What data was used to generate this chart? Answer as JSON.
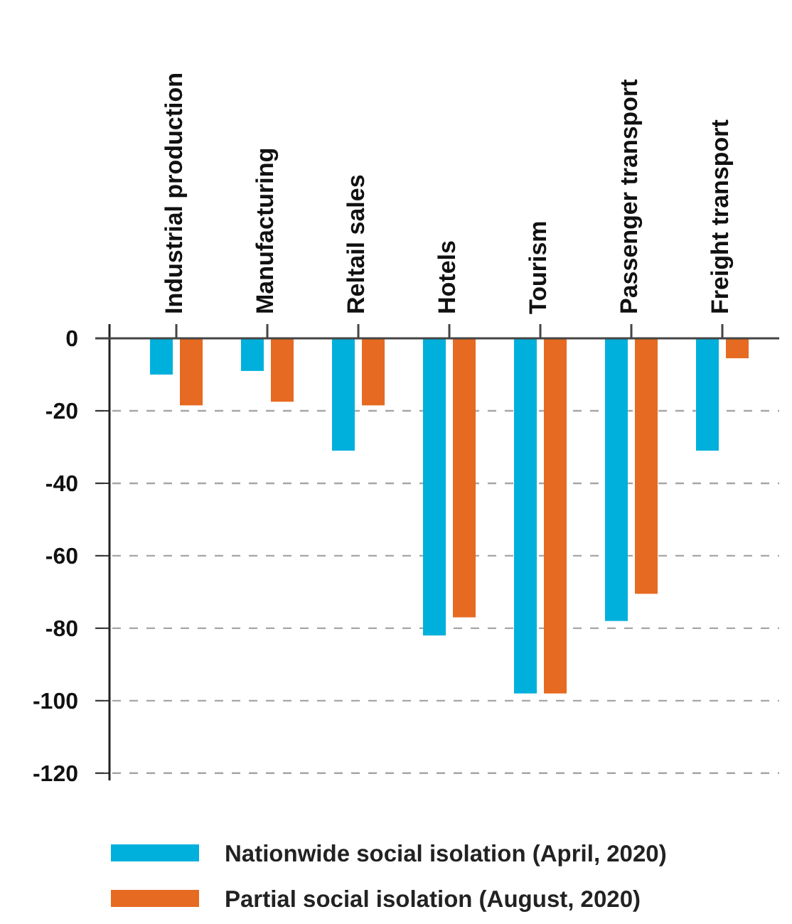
{
  "chart_data": {
    "type": "bar",
    "categories": [
      "Industrial production",
      "Manufacturing",
      "Reltail sales",
      "Hotels",
      "Tourism",
      "Passenger transport",
      "Freight transport"
    ],
    "series": [
      {
        "name": "Nationwide social isolation (April, 2020)",
        "color": "#00b0dc",
        "values": [
          -10,
          -9,
          -31,
          -82,
          -98,
          -78,
          -31
        ]
      },
      {
        "name": "Partial social isolation (August, 2020)",
        "color": "#e66a21",
        "values": [
          -18.5,
          -17.5,
          -18.5,
          -77,
          -98,
          -70.5,
          -5.5
        ]
      }
    ],
    "ylim": [
      -122,
      0
    ],
    "yticks": [
      0,
      -20,
      -40,
      -60,
      -80,
      -100,
      -120
    ],
    "grid": "y",
    "legend": "bottom"
  }
}
